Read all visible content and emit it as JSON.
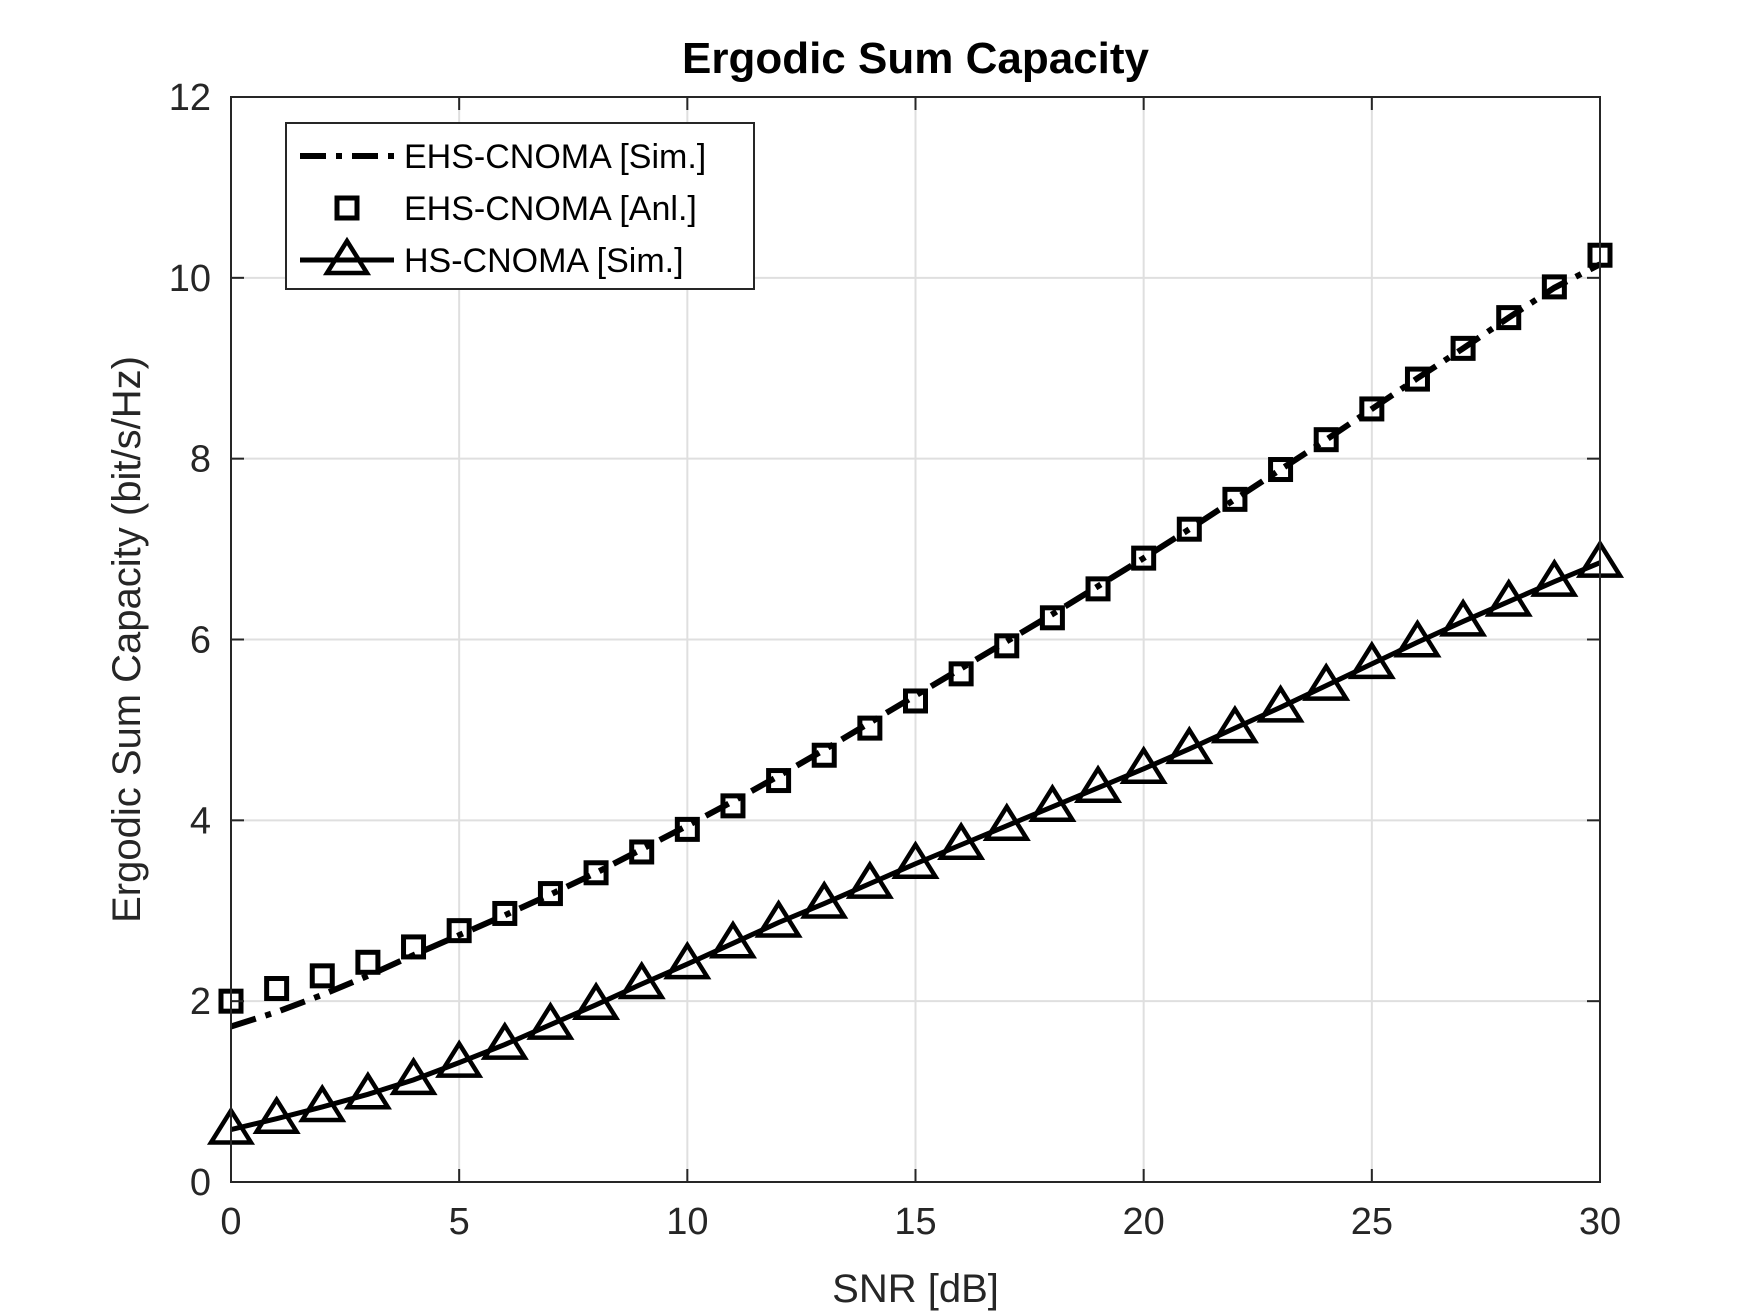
{
  "chart_data": {
    "type": "line",
    "title": "Ergodic Sum Capacity",
    "xlabel": "SNR [dB]",
    "ylabel": "Ergodic Sum Capacity (bit/s/Hz)",
    "xlim": [
      0,
      30
    ],
    "ylim": [
      0,
      12
    ],
    "x_ticks": [
      "0",
      "5",
      "10",
      "15",
      "20",
      "25",
      "30"
    ],
    "y_ticks": [
      "0",
      "2",
      "4",
      "6",
      "8",
      "10",
      "12"
    ],
    "grid": true,
    "legend_position": "top-left",
    "x": [
      0,
      1,
      2,
      3,
      4,
      5,
      6,
      7,
      8,
      9,
      10,
      11,
      12,
      13,
      14,
      15,
      16,
      17,
      18,
      19,
      20,
      21,
      22,
      23,
      24,
      25,
      26,
      27,
      28,
      29,
      30
    ],
    "series": [
      {
        "name": "EHS-CNOMA [Sim.]",
        "style": "dash-dot",
        "color": "#000000",
        "values": [
          1.72,
          1.88,
          2.07,
          2.28,
          2.51,
          2.73,
          2.95,
          3.18,
          3.42,
          3.68,
          3.94,
          4.21,
          4.49,
          4.78,
          5.08,
          5.38,
          5.68,
          5.98,
          6.28,
          6.59,
          6.9,
          7.22,
          7.55,
          7.88,
          8.21,
          8.55,
          8.89,
          9.22,
          9.56,
          9.89,
          10.15
        ]
      },
      {
        "name": "EHS-CNOMA [Anl.]",
        "style": "square-markers",
        "color": "#000000",
        "values": [
          2.0,
          2.14,
          2.28,
          2.43,
          2.6,
          2.78,
          2.97,
          3.19,
          3.42,
          3.65,
          3.9,
          4.16,
          4.44,
          4.72,
          5.02,
          5.32,
          5.62,
          5.93,
          6.24,
          6.56,
          6.9,
          7.22,
          7.55,
          7.88,
          8.21,
          8.55,
          8.88,
          9.22,
          9.56,
          9.9,
          10.25
        ]
      },
      {
        "name": "HS-CNOMA [Sim.]",
        "style": "solid-triangle-markers",
        "color": "#000000",
        "values": [
          0.58,
          0.7,
          0.83,
          0.97,
          1.13,
          1.32,
          1.52,
          1.74,
          1.96,
          2.19,
          2.41,
          2.64,
          2.87,
          3.08,
          3.3,
          3.52,
          3.73,
          3.94,
          4.15,
          4.36,
          4.57,
          4.79,
          5.02,
          5.25,
          5.49,
          5.73,
          5.97,
          6.2,
          6.42,
          6.64,
          6.85
        ]
      }
    ]
  }
}
